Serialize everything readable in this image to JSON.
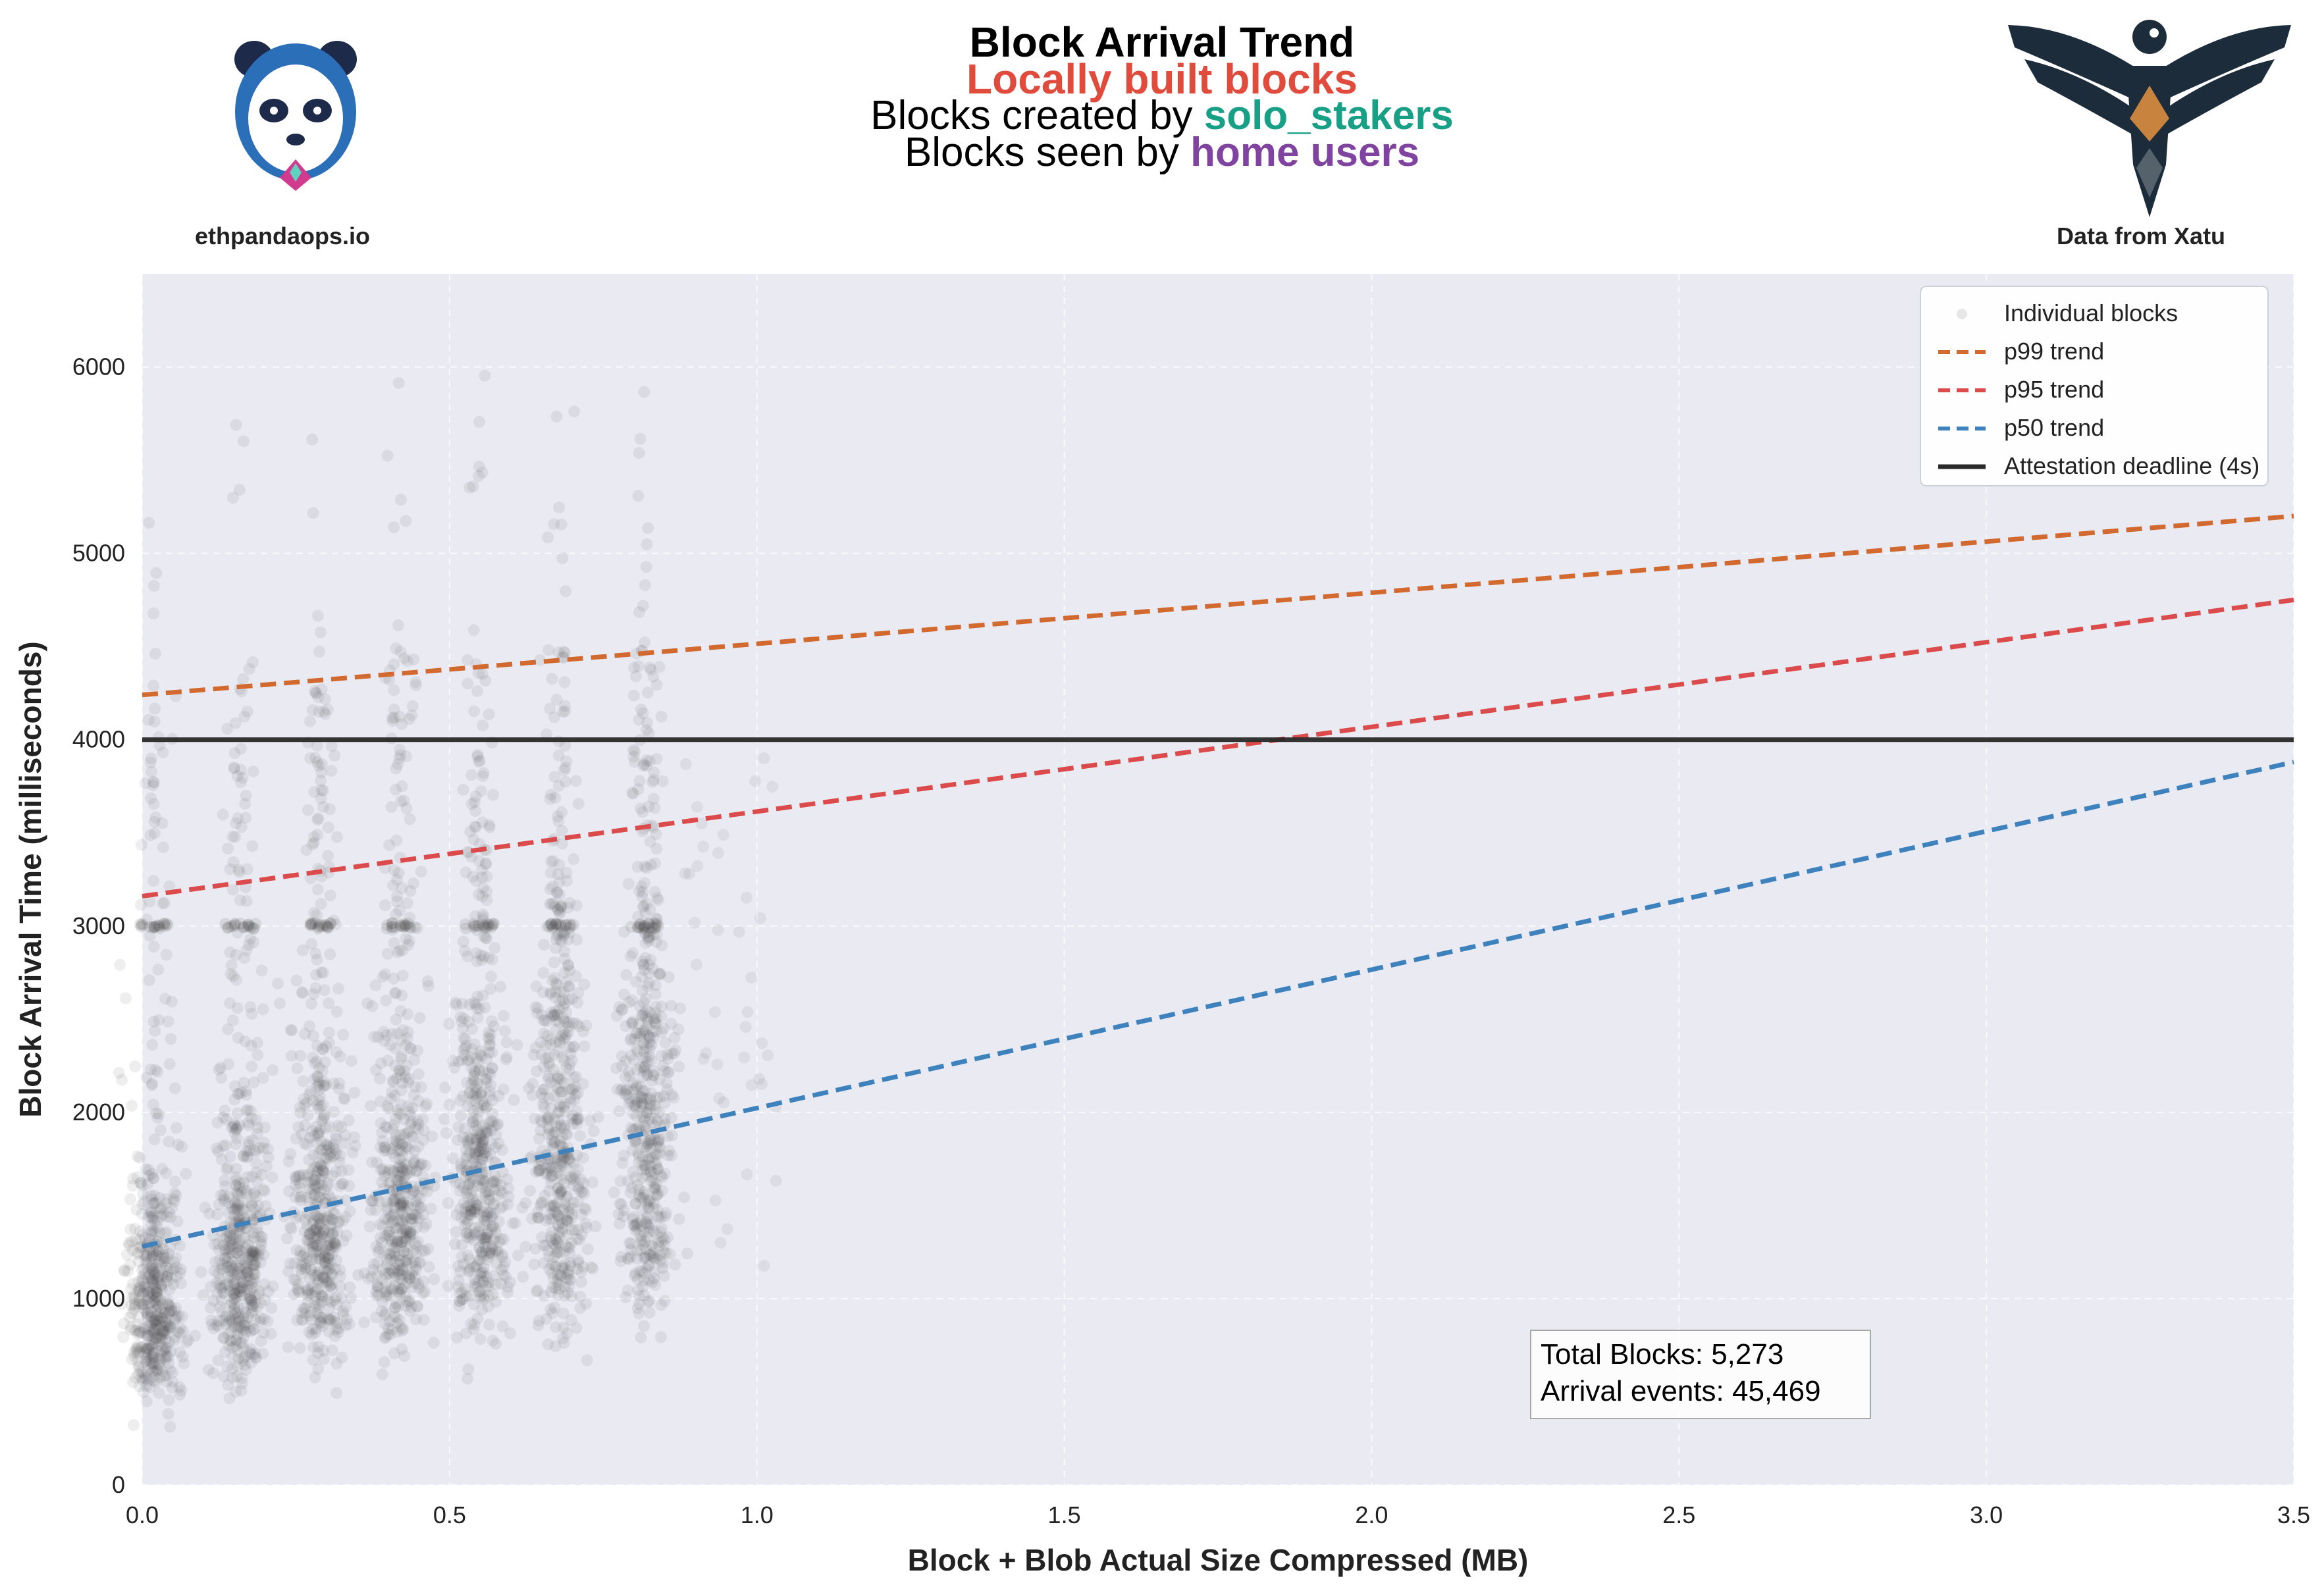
{
  "header": {
    "title": "Block Arrival Trend",
    "subtitle_line1": "Locally built blocks",
    "subtitle_line2_prefix": "Blocks created by ",
    "subtitle_line2_highlight": "solo_stakers",
    "subtitle_line3_prefix": "Blocks seen by ",
    "subtitle_line3_highlight": "home users"
  },
  "branding": {
    "left_logo": "panda-logo-icon",
    "left_text": "ethpandaops.io",
    "right_logo": "xatu-bird-logo-icon",
    "right_text": "Data from Xatu"
  },
  "colors": {
    "subtitle": "#e04b3c",
    "solo_stakers": "#17a085",
    "home_users": "#8044a0",
    "p99": "#d2692f",
    "p95": "#dc4b4b",
    "p50": "#3e82bd",
    "deadline": "#2a2a2a",
    "points": "#404040",
    "plot_bg": "#eaeaf2"
  },
  "chart_data": {
    "type": "scatter",
    "xlabel": "Block + Blob Actual Size Compressed (MB)",
    "ylabel": "Block Arrival Time (milliseconds)",
    "xlim": [
      0.0,
      3.5
    ],
    "ylim": [
      0,
      6500
    ],
    "xticks": [
      "0.0",
      "0.5",
      "1.0",
      "1.5",
      "2.0",
      "2.5",
      "3.0",
      "3.5"
    ],
    "yticks": [
      "0",
      "1000",
      "2000",
      "3000",
      "4000",
      "5000",
      "6000"
    ],
    "grid": true,
    "legend_position": "top-right",
    "scatter_clusters": [
      {
        "x_center": 0.02,
        "y_median": 950,
        "y_min": 200,
        "y_max": 6000
      },
      {
        "x_center": 0.16,
        "y_median": 1150,
        "y_min": 380,
        "y_max": 5900
      },
      {
        "x_center": 0.29,
        "y_median": 1350,
        "y_min": 420,
        "y_max": 5700
      },
      {
        "x_center": 0.42,
        "y_median": 1450,
        "y_min": 420,
        "y_max": 6000
      },
      {
        "x_center": 0.55,
        "y_median": 1550,
        "y_min": 500,
        "y_max": 6000
      },
      {
        "x_center": 0.68,
        "y_median": 1700,
        "y_min": 450,
        "y_max": 6000
      },
      {
        "x_center": 0.82,
        "y_median": 1850,
        "y_min": 280,
        "y_max": 6000
      }
    ],
    "series": [
      {
        "name": "Individual blocks",
        "kind": "scatter"
      },
      {
        "name": "p99 trend",
        "kind": "trend",
        "x": [
          0.0,
          3.5
        ],
        "y": [
          4240,
          5200
        ]
      },
      {
        "name": "p95 trend",
        "kind": "trend",
        "x": [
          0.0,
          3.5
        ],
        "y": [
          3160,
          4750
        ]
      },
      {
        "name": "p50 trend",
        "kind": "trend",
        "x": [
          0.0,
          3.5
        ],
        "y": [
          1280,
          3880
        ]
      },
      {
        "name": "Attestation deadline (4s)",
        "kind": "hline",
        "y": 4000
      }
    ],
    "annotation": {
      "total_blocks": "Total Blocks: 5,273",
      "arrival_events": "Arrival events: 45,469"
    }
  }
}
